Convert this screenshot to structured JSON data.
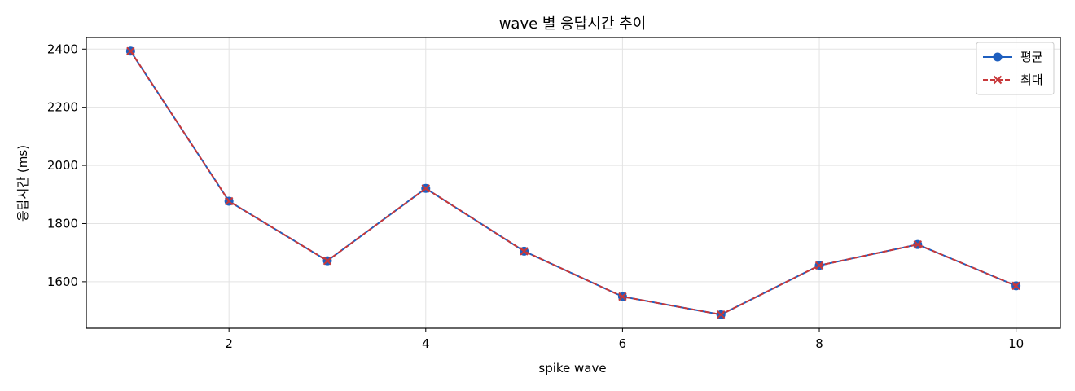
{
  "chart_data": {
    "type": "line",
    "title": "wave 별 응답시간 추이",
    "xlabel": "spike wave",
    "ylabel": "응답시간 (ms)",
    "x": [
      1,
      2,
      3,
      4,
      5,
      6,
      7,
      8,
      9,
      10
    ],
    "xlim": [
      0.55,
      10.45
    ],
    "ylim": [
      1440,
      2440
    ],
    "xticks": [
      2,
      4,
      6,
      8,
      10
    ],
    "yticks": [
      1600,
      1800,
      2000,
      2200,
      2400
    ],
    "grid": true,
    "legend_position": "top-right",
    "series": [
      {
        "name": "평균",
        "color": "#1f5fbf",
        "marker": "circle",
        "linestyle": "solid",
        "values": [
          2393,
          1877,
          1672,
          1921,
          1705,
          1549,
          1487,
          1656,
          1728,
          1586
        ]
      },
      {
        "name": "최대",
        "color": "#c8383a",
        "marker": "x",
        "linestyle": "dashed",
        "values": [
          2393,
          1877,
          1672,
          1921,
          1705,
          1549,
          1487,
          1656,
          1728,
          1586
        ]
      }
    ]
  }
}
